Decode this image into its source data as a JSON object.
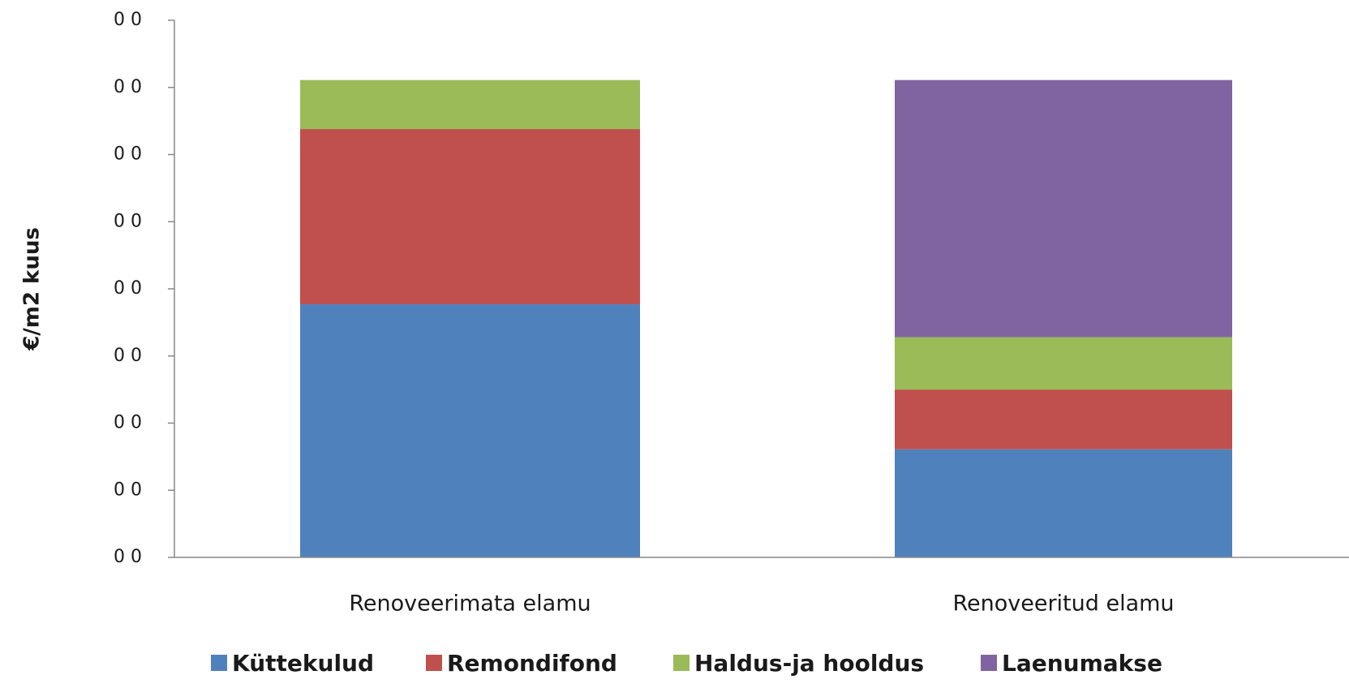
{
  "chart_data": {
    "type": "stacked_bar",
    "ylabel": "€/m2 kuus",
    "categories": [
      "Renoveerimata elamu",
      "Renoveeritud elamu"
    ],
    "series": [
      {
        "name": "Küttekulud",
        "color": "#4f81bd",
        "values": [
          3.77,
          1.61
        ]
      },
      {
        "name": "Remondifond",
        "color": "#c0504d",
        "values": [
          2.61,
          0.89
        ]
      },
      {
        "name": "Haldus-ja hooldus",
        "color": "#9bbb59",
        "values": [
          0.73,
          0.78
        ]
      },
      {
        "name": "Laenumakse",
        "color": "#8064a2",
        "values": [
          0,
          3.83
        ]
      }
    ],
    "ylim": [
      0,
      8
    ],
    "yticks": [
      {
        "value": 0,
        "label": "0 0"
      },
      {
        "value": 1,
        "label": "0 0"
      },
      {
        "value": 2,
        "label": "0 0"
      },
      {
        "value": 3,
        "label": "0 0"
      },
      {
        "value": 4,
        "label": "0 0"
      },
      {
        "value": 5,
        "label": "0 0"
      },
      {
        "value": 6,
        "label": "0 0"
      },
      {
        "value": 7,
        "label": "0 0"
      },
      {
        "value": 8,
        "label": "0 0"
      }
    ],
    "legend": "bottom"
  }
}
